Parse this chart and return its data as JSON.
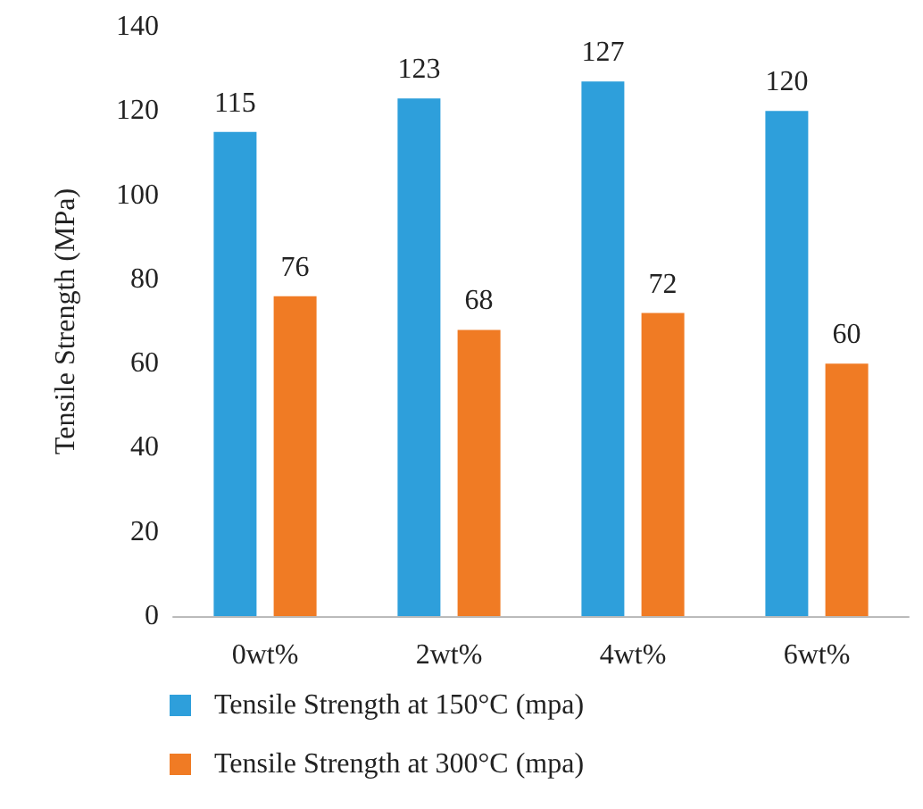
{
  "chart_data": {
    "type": "bar",
    "ylabel": "Tensile Strength (MPa)",
    "categories": [
      "0wt%",
      "2wt%",
      "4wt%",
      "6wt%"
    ],
    "series": [
      {
        "name": "Tensile Strength at 150°C (mpa)",
        "color": "#2e9fdb",
        "values": [
          115,
          123,
          127,
          120
        ]
      },
      {
        "name": "Tensile Strength at 300°C (mpa)",
        "color": "#f07b24",
        "values": [
          76,
          68,
          72,
          60
        ]
      }
    ],
    "ylim": [
      0,
      140
    ],
    "yticks": [
      0,
      20,
      40,
      60,
      80,
      100,
      120,
      140
    ],
    "grid": false,
    "legend": "bottom",
    "data_labels": true
  }
}
